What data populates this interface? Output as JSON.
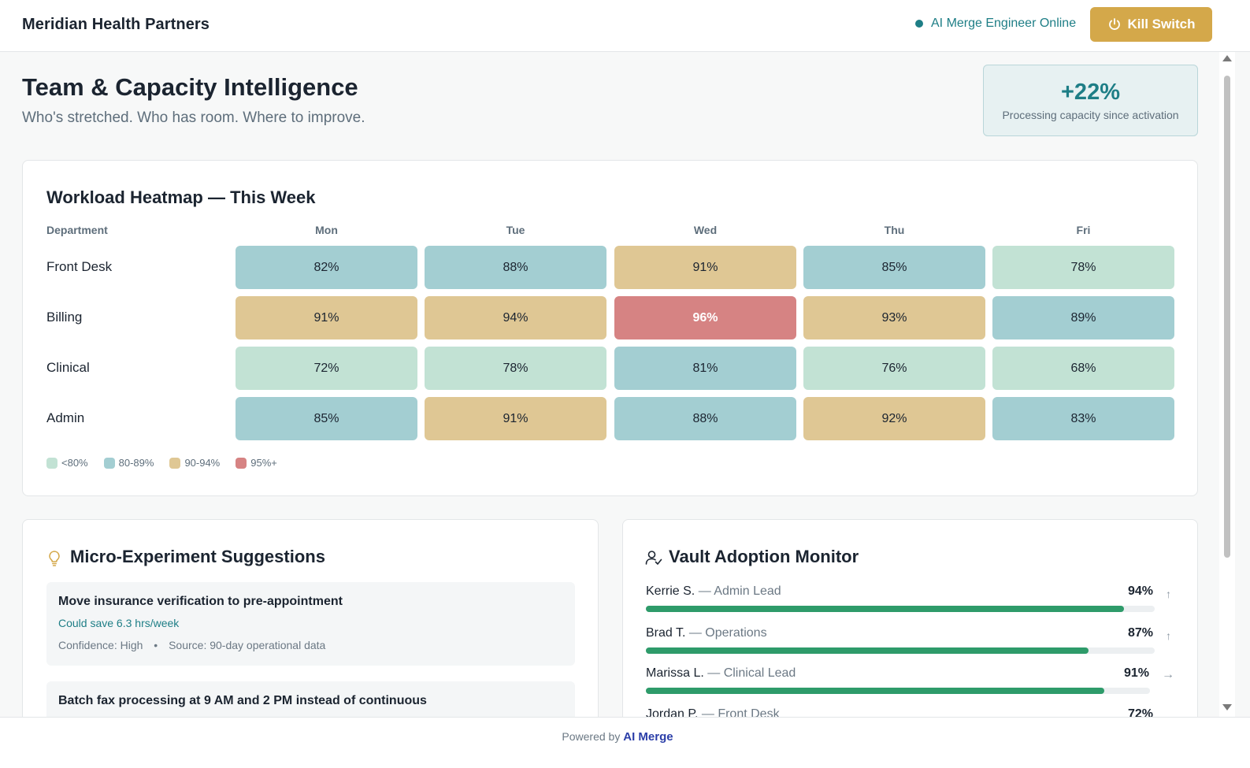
{
  "header": {
    "brand": "Meridian Health Partners",
    "status_text": "AI Merge Engineer Online",
    "kill_switch_label": "Kill Switch"
  },
  "page": {
    "title": "Team & Capacity Intelligence",
    "subtitle": "Who's stretched. Who has room. Where to improve."
  },
  "capacity": {
    "value": "+22%",
    "label": "Processing capacity since activation"
  },
  "heatmap": {
    "title": "Workload Heatmap — This Week",
    "dept_header": "Department",
    "days": [
      "Mon",
      "Tue",
      "Wed",
      "Thu",
      "Fri"
    ],
    "rows": [
      {
        "dept": "Front Desk",
        "values": [
          "82%",
          "88%",
          "91%",
          "85%",
          "78%"
        ]
      },
      {
        "dept": "Billing",
        "values": [
          "91%",
          "94%",
          "96%",
          "93%",
          "89%"
        ]
      },
      {
        "dept": "Clinical",
        "values": [
          "72%",
          "78%",
          "81%",
          "76%",
          "68%"
        ]
      },
      {
        "dept": "Admin",
        "values": [
          "85%",
          "91%",
          "88%",
          "92%",
          "83%"
        ]
      }
    ],
    "legend": [
      {
        "label": "<80%",
        "color": "#c2e2d4"
      },
      {
        "label": "80-89%",
        "color": "#a3ced2"
      },
      {
        "label": "90-94%",
        "color": "#dfc794"
      },
      {
        "label": "95%+",
        "color": "#d68383"
      }
    ]
  },
  "experiments": {
    "title": "Micro-Experiment Suggestions",
    "items": [
      {
        "title": "Move insurance verification to pre-appointment",
        "saving": "Could save 6.3 hrs/week",
        "confidence": "Confidence: High",
        "source": "Source: 90-day operational data"
      },
      {
        "title": "Batch fax processing at 9 AM and 2 PM instead of continuous"
      }
    ]
  },
  "vault": {
    "title": "Vault Adoption Monitor",
    "people": [
      {
        "name": "Kerrie S.",
        "role": "— Admin Lead",
        "pct": "94%",
        "value": 94,
        "trend": "↑"
      },
      {
        "name": "Brad T.",
        "role": "— Operations",
        "pct": "87%",
        "value": 87,
        "trend": "↑"
      },
      {
        "name": "Marissa L.",
        "role": "— Clinical Lead",
        "pct": "91%",
        "value": 91,
        "trend": "→"
      },
      {
        "name": "Jordan P.",
        "role": "— Front Desk",
        "pct": "72%",
        "value": 72,
        "trend": "→"
      }
    ]
  },
  "footer": {
    "prefix": "Powered by",
    "brand": "AI Merge"
  }
}
